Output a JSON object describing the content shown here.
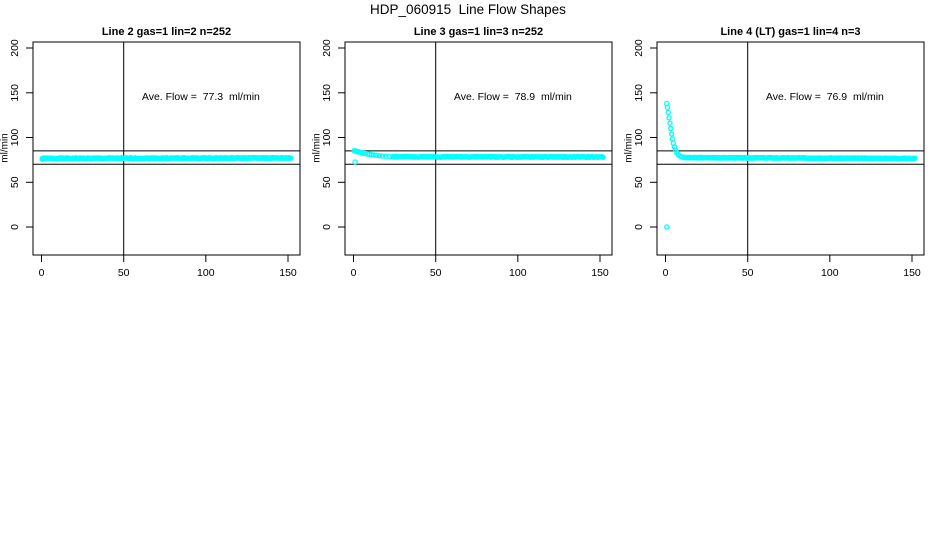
{
  "title": "HDP_060915  Line Flow Shapes",
  "colors": {
    "points": "#00FFFF",
    "axis": "#000000",
    "text": "#000000",
    "background": "#FFFFFF"
  },
  "chart_data": {
    "type": "scatter",
    "layout": "three panels side by side, shared axis style, legend none, grid off",
    "xlabel": "",
    "ylabel": "ml/min",
    "x_ticks": [
      0,
      50,
      100,
      150
    ],
    "y_ticks": [
      0,
      50,
      100,
      150,
      200
    ],
    "xlim": [
      -6,
      156
    ],
    "ylim_drawn": [
      -31,
      207
    ],
    "ref_lines_y": [
      85,
      70
    ],
    "ref_line_x": 50,
    "marker": "open-circle",
    "panels": [
      {
        "title": "Line 2 gas=1 lin=2 n=252",
        "annotation": "Ave. Flow =  77.3  ml/min",
        "ave_flow": 77.3,
        "n": 252,
        "outliers": [],
        "transient": [
          [
            0.5,
            75.8
          ],
          [
            1.1,
            76.9
          ]
        ],
        "flat": {
          "x_from": 0.5,
          "x_to": 152,
          "step": 0.6,
          "y_start": 76.6,
          "y_end": 77.1,
          "jitter": 0.55
        }
      },
      {
        "title": "Line 3 gas=1 lin=3 n=252",
        "annotation": "Ave. Flow =  78.9  ml/min",
        "ave_flow": 78.9,
        "n": 252,
        "outliers": [
          [
            1,
            72.6
          ]
        ],
        "transient": [
          [
            0.5,
            85.2
          ],
          [
            1.1,
            84.9
          ],
          [
            1.7,
            84.6
          ],
          [
            2.3,
            84.3
          ],
          [
            3,
            84
          ],
          [
            3.8,
            83.6
          ],
          [
            4.6,
            83.2
          ],
          [
            5.5,
            82.8
          ],
          [
            6.5,
            82.4
          ],
          [
            7.5,
            82
          ],
          [
            8.6,
            81.6
          ],
          [
            9.8,
            81.2
          ],
          [
            11,
            80.8
          ],
          [
            12.5,
            80.4
          ],
          [
            14,
            80
          ],
          [
            15.8,
            79.6
          ],
          [
            17.6,
            79.3
          ],
          [
            19.6,
            79
          ],
          [
            21.8,
            78.8
          ],
          [
            24,
            78.6
          ]
        ],
        "flat": {
          "x_from": 24,
          "x_to": 152,
          "step": 0.6,
          "y_start": 78.5,
          "y_end": 78.2,
          "jitter": 0.4
        }
      },
      {
        "title": "Line 4 (LT) gas=1 lin=4 n=3",
        "annotation": "Ave. Flow =  76.9  ml/min",
        "ave_flow": 76.9,
        "n": 3,
        "outliers": [
          [
            0.8,
            0
          ]
        ],
        "transient": [
          [
            0.8,
            138
          ],
          [
            1.2,
            133.5
          ],
          [
            1.7,
            128
          ],
          [
            2.2,
            122
          ],
          [
            2.7,
            116
          ],
          [
            3.2,
            110
          ],
          [
            3.7,
            104
          ],
          [
            4.2,
            98.5
          ],
          [
            4.8,
            93.5
          ],
          [
            5.4,
            89.5
          ],
          [
            6.1,
            86
          ],
          [
            6.9,
            83
          ],
          [
            7.8,
            80.8
          ],
          [
            8.8,
            79.3
          ],
          [
            9.9,
            78.4
          ],
          [
            11,
            77.9
          ],
          [
            12.2,
            77.6
          ]
        ],
        "flat": {
          "x_from": 12,
          "x_to": 152,
          "step": 0.6,
          "y_start": 77.5,
          "y_end": 76.6,
          "jitter": 0.35
        }
      }
    ]
  }
}
